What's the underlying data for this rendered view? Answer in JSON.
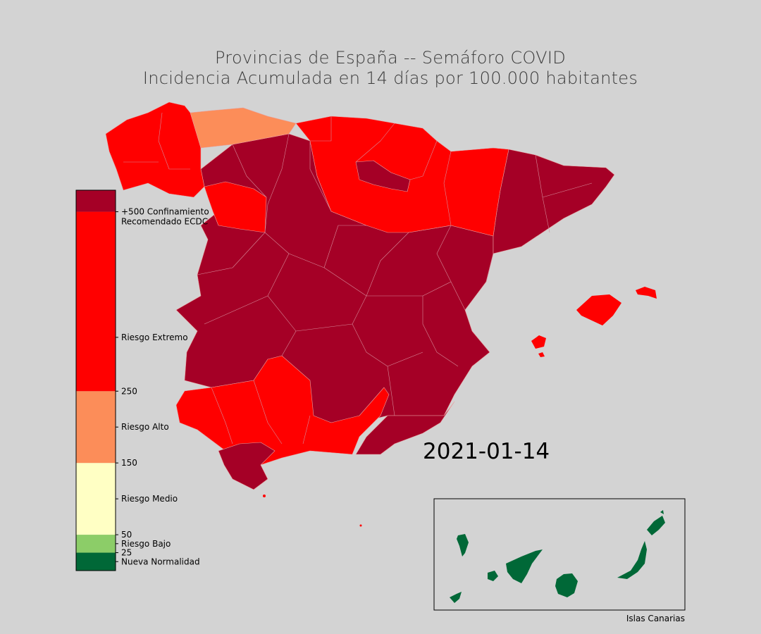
{
  "title": {
    "line1": "Provincias de España -- Semáforo COVID",
    "line2": "Incidencia Acumulada en 14 días por 100.000 habitantes"
  },
  "date": "2021-01-14",
  "inset_label": "Islas Canarias",
  "colors": {
    "background": "#d3d3d3",
    "nueva_normalidad": "#006837",
    "riesgo_bajo": "#8ccd68",
    "riesgo_medio": "#ffffc4",
    "riesgo_alto": "#fc8d59",
    "riesgo_extremo": "#ff0000",
    "confinamiento": "#a50026"
  },
  "legend": {
    "scale_max": 530,
    "bands": [
      {
        "from": 0,
        "to": 25,
        "color": "#006837"
      },
      {
        "from": 25,
        "to": 50,
        "color": "#8ccd68"
      },
      {
        "from": 50,
        "to": 150,
        "color": "#ffffc4"
      },
      {
        "from": 150,
        "to": 250,
        "color": "#fc8d59"
      },
      {
        "from": 250,
        "to": 500,
        "color": "#ff0000"
      },
      {
        "from": 500,
        "to": 530,
        "color": "#a50026"
      }
    ],
    "ticks": [
      {
        "value": 12.5,
        "label": "Nueva Normalidad"
      },
      {
        "value": 25,
        "label": "25"
      },
      {
        "value": 37.5,
        "label": "Riesgo Bajo"
      },
      {
        "value": 50,
        "label": "50"
      },
      {
        "value": 100,
        "label": "Riesgo Medio"
      },
      {
        "value": 150,
        "label": "150"
      },
      {
        "value": 200,
        "label": "Riesgo Alto"
      },
      {
        "value": 250,
        "label": "250"
      },
      {
        "value": 325,
        "label": "Riesgo Extremo"
      },
      {
        "value": 500,
        "label": "+500 Confinamiento",
        "label2": "Recomendado ECDC"
      }
    ]
  },
  "regions": [
    {
      "name": "galicia-west",
      "level": "riesgo_extremo"
    },
    {
      "name": "asturias",
      "level": "riesgo_alto"
    },
    {
      "name": "north-coast",
      "level": "riesgo_extremo"
    },
    {
      "name": "castilla-leon",
      "level": "confinamiento"
    },
    {
      "name": "zamora",
      "level": "riesgo_extremo"
    },
    {
      "name": "la-rioja",
      "level": "confinamiento"
    },
    {
      "name": "aragon",
      "level": "riesgo_extremo"
    },
    {
      "name": "catalonia",
      "level": "confinamiento"
    },
    {
      "name": "central-spain",
      "level": "confinamiento"
    },
    {
      "name": "andalucia",
      "level": "riesgo_extremo"
    },
    {
      "name": "cadiz",
      "level": "confinamiento"
    },
    {
      "name": "murcia",
      "level": "confinamiento"
    },
    {
      "name": "baleares-mallorca",
      "level": "riesgo_extremo"
    },
    {
      "name": "baleares-menorca",
      "level": "riesgo_extremo"
    },
    {
      "name": "baleares-ibiza",
      "level": "riesgo_extremo"
    },
    {
      "name": "canarias",
      "level": "nueva_normalidad"
    }
  ]
}
